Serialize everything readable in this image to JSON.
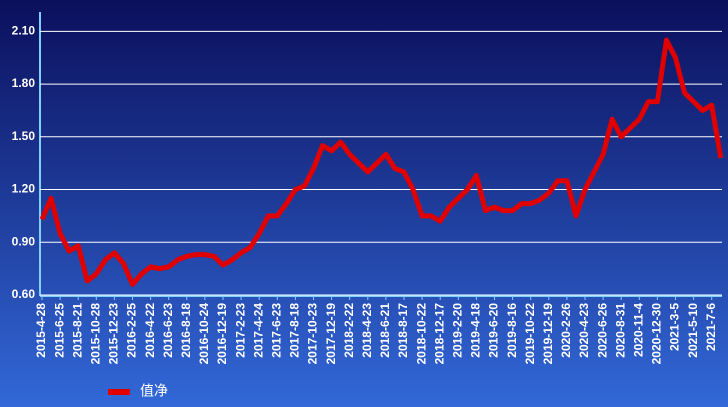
{
  "chart_data": {
    "type": "line",
    "categories": [
      "2015-4-28",
      null,
      "2015-6-25",
      null,
      "2015-8-21",
      null,
      "2015-10-28",
      null,
      "2015-12-23",
      null,
      "2016-2-25",
      null,
      "2016-4-22",
      null,
      "2016-6-23",
      null,
      "2016-8-18",
      null,
      "2016-10-24",
      null,
      "2016-12-19",
      null,
      "2017-2-23",
      null,
      "2017-4-24",
      null,
      "2017-6-23",
      null,
      "2017-8-18",
      null,
      "2017-10-23",
      null,
      "2017-12-19",
      null,
      "2018-2-22",
      null,
      "2018-4-23",
      null,
      "2018-6-21",
      null,
      "2018-8-17",
      null,
      "2018-10-22",
      null,
      "2018-12-17",
      null,
      "2019-2-20",
      null,
      "2019-4-18",
      null,
      "2019-6-20",
      null,
      "2019-8-16",
      null,
      "2019-10-22",
      null,
      "2019-12-19",
      null,
      "2020-2-26",
      null,
      "2020-4-23",
      null,
      "2020-6-26",
      null,
      "2020-8-31",
      null,
      "2020-11-4",
      null,
      "2020-12-30",
      null,
      "2021-3-5",
      null,
      "2021-5-10",
      null,
      "2021-7-6",
      null
    ],
    "series": [
      {
        "name": "值净",
        "color": "#e00000",
        "values": [
          1.03,
          1.15,
          0.95,
          0.85,
          0.88,
          0.68,
          0.72,
          0.8,
          0.84,
          0.78,
          0.66,
          0.72,
          0.76,
          0.75,
          0.76,
          0.8,
          0.82,
          0.83,
          0.83,
          0.82,
          0.77,
          0.8,
          0.84,
          0.87,
          0.95,
          1.05,
          1.05,
          1.12,
          1.2,
          1.22,
          1.32,
          1.45,
          1.42,
          1.47,
          1.4,
          1.35,
          1.3,
          1.35,
          1.4,
          1.32,
          1.3,
          1.2,
          1.05,
          1.05,
          1.02,
          1.1,
          1.15,
          1.2,
          1.28,
          1.08,
          1.1,
          1.08,
          1.08,
          1.12,
          1.12,
          1.14,
          1.18,
          1.25,
          1.25,
          1.05,
          1.2,
          1.3,
          1.4,
          1.6,
          1.5,
          1.55,
          1.6,
          1.7,
          1.7,
          2.05,
          1.95,
          1.75,
          1.7,
          1.65,
          1.68,
          1.38
        ]
      }
    ],
    "ylim": [
      0.6,
      2.21
    ],
    "yticks": [
      {
        "value": 0.6,
        "label": "0.60"
      },
      {
        "value": 0.9,
        "label": "0.90"
      },
      {
        "value": 1.2,
        "label": "1.20"
      },
      {
        "value": 1.5,
        "label": "1.50"
      },
      {
        "value": 1.8,
        "label": "1.80"
      },
      {
        "value": 2.1,
        "label": "2.10"
      }
    ],
    "grid": true,
    "legend": "bottom"
  }
}
